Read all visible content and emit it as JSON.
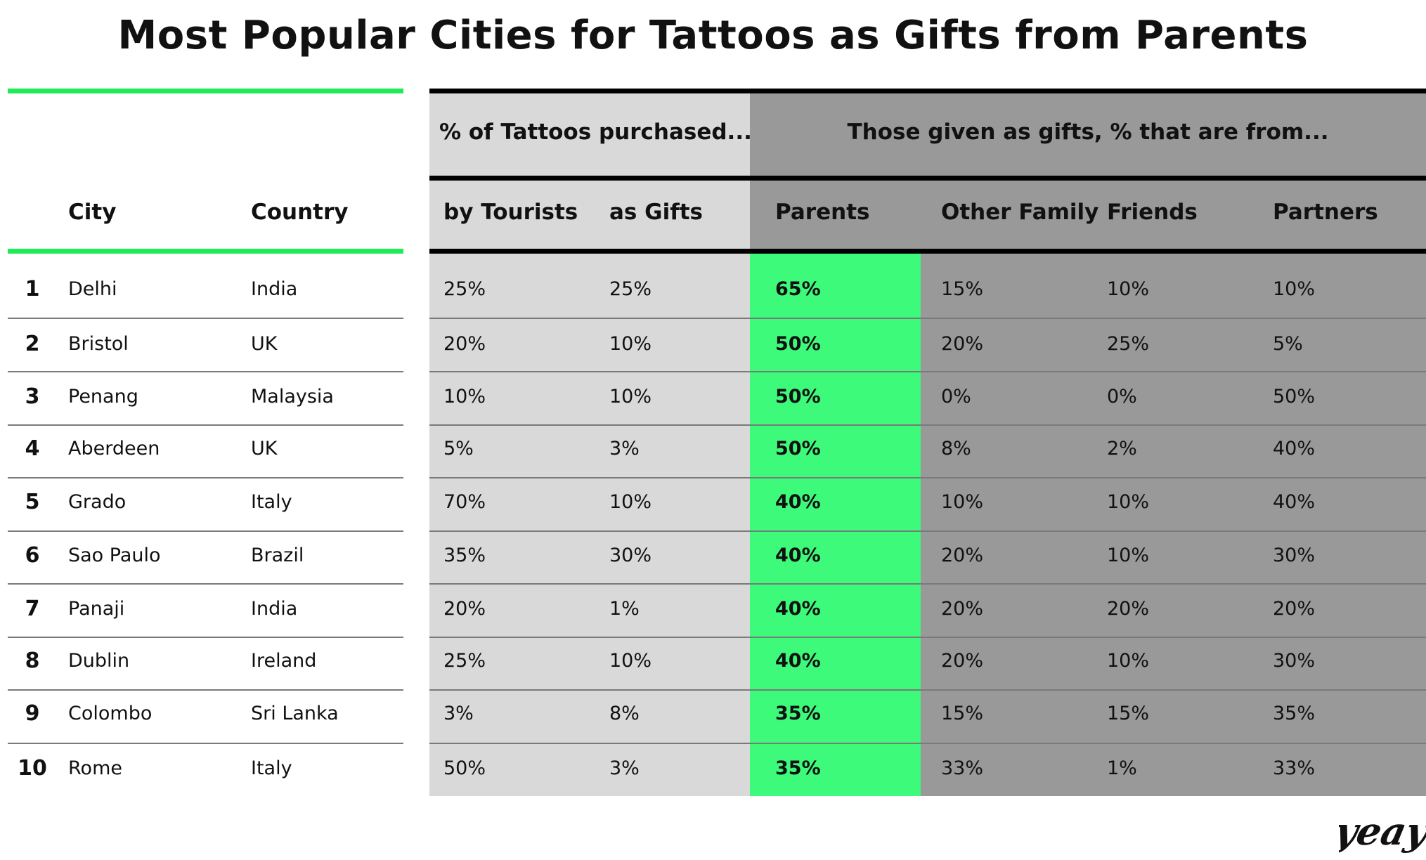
{
  "title": "Most Popular Cities for Tattoos as Gifts from Parents",
  "colors": {
    "accent_green": "#3dfa7a",
    "light_grey": "#d9d9d9",
    "dark_grey": "#999999",
    "rule_black": "#000000",
    "green_line": "#21ea57"
  },
  "headers": {
    "group1": "% of Tattoos purchased...",
    "group2": "Those given as gifts, % that are from...",
    "city": "City",
    "country": "Country",
    "tourists": "by Tourists",
    "gifts": "as Gifts",
    "parents": "Parents",
    "other_family": "Other Family",
    "friends": "Friends",
    "partners": "Partners"
  },
  "rows": [
    {
      "rank": "1",
      "city": "Delhi",
      "country": "India",
      "tourists": "25%",
      "gifts": "25%",
      "parents": "65%",
      "other_family": "15%",
      "friends": "10%",
      "partners": "10%"
    },
    {
      "rank": "2",
      "city": "Bristol",
      "country": "UK",
      "tourists": "20%",
      "gifts": "10%",
      "parents": "50%",
      "other_family": "20%",
      "friends": "25%",
      "partners": "5%"
    },
    {
      "rank": "3",
      "city": "Penang",
      "country": "Malaysia",
      "tourists": "10%",
      "gifts": "10%",
      "parents": "50%",
      "other_family": "0%",
      "friends": "0%",
      "partners": "50%"
    },
    {
      "rank": "4",
      "city": "Aberdeen",
      "country": "UK",
      "tourists": "5%",
      "gifts": "3%",
      "parents": "50%",
      "other_family": "8%",
      "friends": "2%",
      "partners": "40%"
    },
    {
      "rank": "5",
      "city": "Grado",
      "country": "Italy",
      "tourists": "70%",
      "gifts": "10%",
      "parents": "40%",
      "other_family": "10%",
      "friends": "10%",
      "partners": "40%"
    },
    {
      "rank": "6",
      "city": "Sao Paulo",
      "country": "Brazil",
      "tourists": "35%",
      "gifts": "30%",
      "parents": "40%",
      "other_family": "20%",
      "friends": "10%",
      "partners": "30%"
    },
    {
      "rank": "7",
      "city": "Panaji",
      "country": "India",
      "tourists": "20%",
      "gifts": "1%",
      "parents": "40%",
      "other_family": "20%",
      "friends": "20%",
      "partners": "20%"
    },
    {
      "rank": "8",
      "city": "Dublin",
      "country": "Ireland",
      "tourists": "25%",
      "gifts": "10%",
      "parents": "40%",
      "other_family": "20%",
      "friends": "10%",
      "partners": "30%"
    },
    {
      "rank": "9",
      "city": "Colombo",
      "country": "Sri Lanka",
      "tourists": "3%",
      "gifts": "8%",
      "parents": "35%",
      "other_family": "15%",
      "friends": "15%",
      "partners": "35%"
    },
    {
      "rank": "10",
      "city": "Rome",
      "country": "Italy",
      "tourists": "50%",
      "gifts": "3%",
      "parents": "35%",
      "other_family": "33%",
      "friends": "1%",
      "partners": "33%"
    }
  ],
  "logo_text": "yeay",
  "chart_data": {
    "type": "table",
    "title": "Most Popular Cities for Tattoos as Gifts from Parents",
    "columns": [
      "City",
      "Country",
      "by Tourists",
      "as Gifts",
      "Parents",
      "Other Family",
      "Friends",
      "Partners"
    ],
    "rows": [
      [
        "Delhi",
        "India",
        25,
        25,
        65,
        15,
        10,
        10
      ],
      [
        "Bristol",
        "UK",
        20,
        10,
        50,
        20,
        25,
        5
      ],
      [
        "Penang",
        "Malaysia",
        10,
        10,
        50,
        0,
        0,
        50
      ],
      [
        "Aberdeen",
        "UK",
        5,
        3,
        50,
        8,
        2,
        40
      ],
      [
        "Grado",
        "Italy",
        70,
        10,
        40,
        10,
        10,
        40
      ],
      [
        "Sao Paulo",
        "Brazil",
        35,
        30,
        40,
        20,
        10,
        30
      ],
      [
        "Panaji",
        "India",
        20,
        1,
        40,
        20,
        20,
        20
      ],
      [
        "Dublin",
        "Ireland",
        25,
        10,
        40,
        20,
        10,
        30
      ],
      [
        "Colombo",
        "Sri Lanka",
        3,
        8,
        35,
        15,
        15,
        35
      ],
      [
        "Rome",
        "Italy",
        50,
        3,
        35,
        33,
        1,
        33
      ]
    ]
  }
}
